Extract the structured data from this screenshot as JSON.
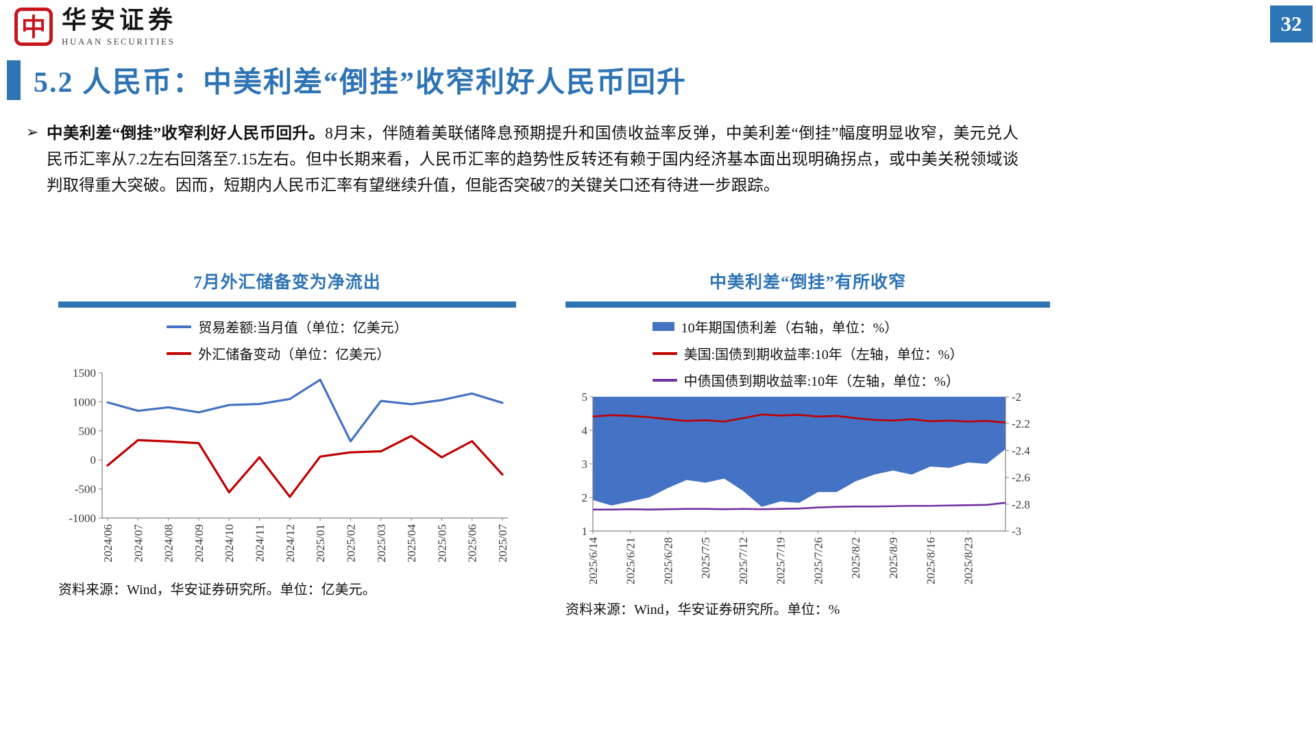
{
  "meta": {
    "page_number": "32"
  },
  "brand": {
    "name_cn": "华安证券",
    "name_en": "HUAAN SECURITIES",
    "seal_char": "中"
  },
  "title": {
    "text": "5.2 人民币：中美利差“倒挂”收窄利好人民币回升"
  },
  "body": {
    "bullet": "➢",
    "lead_bold": "中美利差“倒挂”收窄利好人民币回升。",
    "text": "8月末，伴随着美联储降息预期提升和国债收益率反弹，中美利差“倒挂”幅度明显收窄，美元兑人民币汇率从7.2左右回落至7.15左右。但中长期来看，人民币汇率的趋势性反转还有赖于国内经济基本面出现明确拐点，或中美关税领域谈判取得重大突破。因而，短期内人民币汇率有望继续升值，但能否突破7的关键关口还有待进一步跟踪。"
  },
  "panels": {
    "left": {
      "source": "资料来源：Wind，华安证券研究所。单位：亿美元。"
    },
    "right": {
      "source": "资料来源：Wind，华安证券研究所。单位：%"
    }
  },
  "colors": {
    "accent_blue": "#2e75b6",
    "title_blue": "#2e74b5",
    "line_blue": "#4472c4",
    "line_red": "#c00000",
    "line_purple": "#7030a0"
  },
  "chart_data": [
    {
      "type": "line",
      "title": "7月外汇储备变为净流出",
      "categories": [
        "2024/06",
        "2024/07",
        "2024/08",
        "2024/09",
        "2024/10",
        "2024/11",
        "2024/12",
        "2025/01",
        "2025/02",
        "2025/03",
        "2025/04",
        "2025/05",
        "2025/06",
        "2025/07"
      ],
      "series": [
        {
          "name": "贸易差额:当月值（单位：亿美元）",
          "color": "#4472c4",
          "axis": "left",
          "values": [
            990,
            845,
            905,
            818,
            945,
            962,
            1048,
            1380,
            320,
            1015,
            958,
            1030,
            1142,
            982
          ]
        },
        {
          "name": "外汇储备变动（单位：亿美元）",
          "color": "#c00000",
          "axis": "left",
          "values": [
            -95,
            340,
            318,
            288,
            -558,
            45,
            -635,
            58,
            130,
            148,
            412,
            45,
            322,
            -252
          ]
        }
      ],
      "ylim": [
        -1000,
        1500
      ],
      "yticks": [
        1500,
        1000,
        500,
        0,
        -500,
        -1000
      ],
      "grid": false,
      "legend_position": "top"
    },
    {
      "type": "combo",
      "title": "中美利差“倒挂”有所收窄",
      "x_tick_labels": [
        "2025/6/14",
        "2025/6/21",
        "2025/6/28",
        "2025/7/5",
        "2025/7/12",
        "2025/7/19",
        "2025/7/26",
        "2025/8/2",
        "2025/8/9",
        "2025/8/16",
        "2025/8/23"
      ],
      "left_ylim": [
        1,
        5
      ],
      "left_yticks": [
        5,
        4,
        3,
        2,
        1
      ],
      "right_ylim": [
        -3,
        -2
      ],
      "right_yticks": [
        -2,
        -2.2,
        -2.4,
        -2.6,
        -2.8,
        -3
      ],
      "grid": false,
      "legend_position": "top",
      "series": [
        {
          "name": "10年期国债利差（右轴，单位：%）",
          "type": "area",
          "axis": "right",
          "color": "#4472c4",
          "baseline": -2,
          "values": [
            -2.77,
            -2.81,
            -2.78,
            -2.75,
            -2.68,
            -2.62,
            -2.64,
            -2.61,
            -2.7,
            -2.82,
            -2.78,
            -2.79,
            -2.71,
            -2.71,
            -2.63,
            -2.58,
            -2.55,
            -2.58,
            -2.52,
            -2.53,
            -2.49,
            -2.5,
            -2.39
          ]
        },
        {
          "name": "美国:国债到期收益率:10年（左轴，单位：%）",
          "type": "line",
          "axis": "left",
          "color": "#c00000",
          "values": [
            4.41,
            4.45,
            4.43,
            4.39,
            4.33,
            4.28,
            4.3,
            4.26,
            4.36,
            4.47,
            4.44,
            4.46,
            4.41,
            4.43,
            4.36,
            4.31,
            4.29,
            4.33,
            4.27,
            4.29,
            4.26,
            4.28,
            4.23
          ]
        },
        {
          "name": "中债国债到期收益率:10年（左轴，单位：%）",
          "type": "line",
          "axis": "left",
          "color": "#7030a0",
          "values": [
            1.64,
            1.64,
            1.65,
            1.64,
            1.65,
            1.66,
            1.66,
            1.65,
            1.66,
            1.65,
            1.66,
            1.67,
            1.7,
            1.72,
            1.73,
            1.73,
            1.74,
            1.75,
            1.75,
            1.76,
            1.77,
            1.78,
            1.84
          ]
        }
      ]
    }
  ]
}
